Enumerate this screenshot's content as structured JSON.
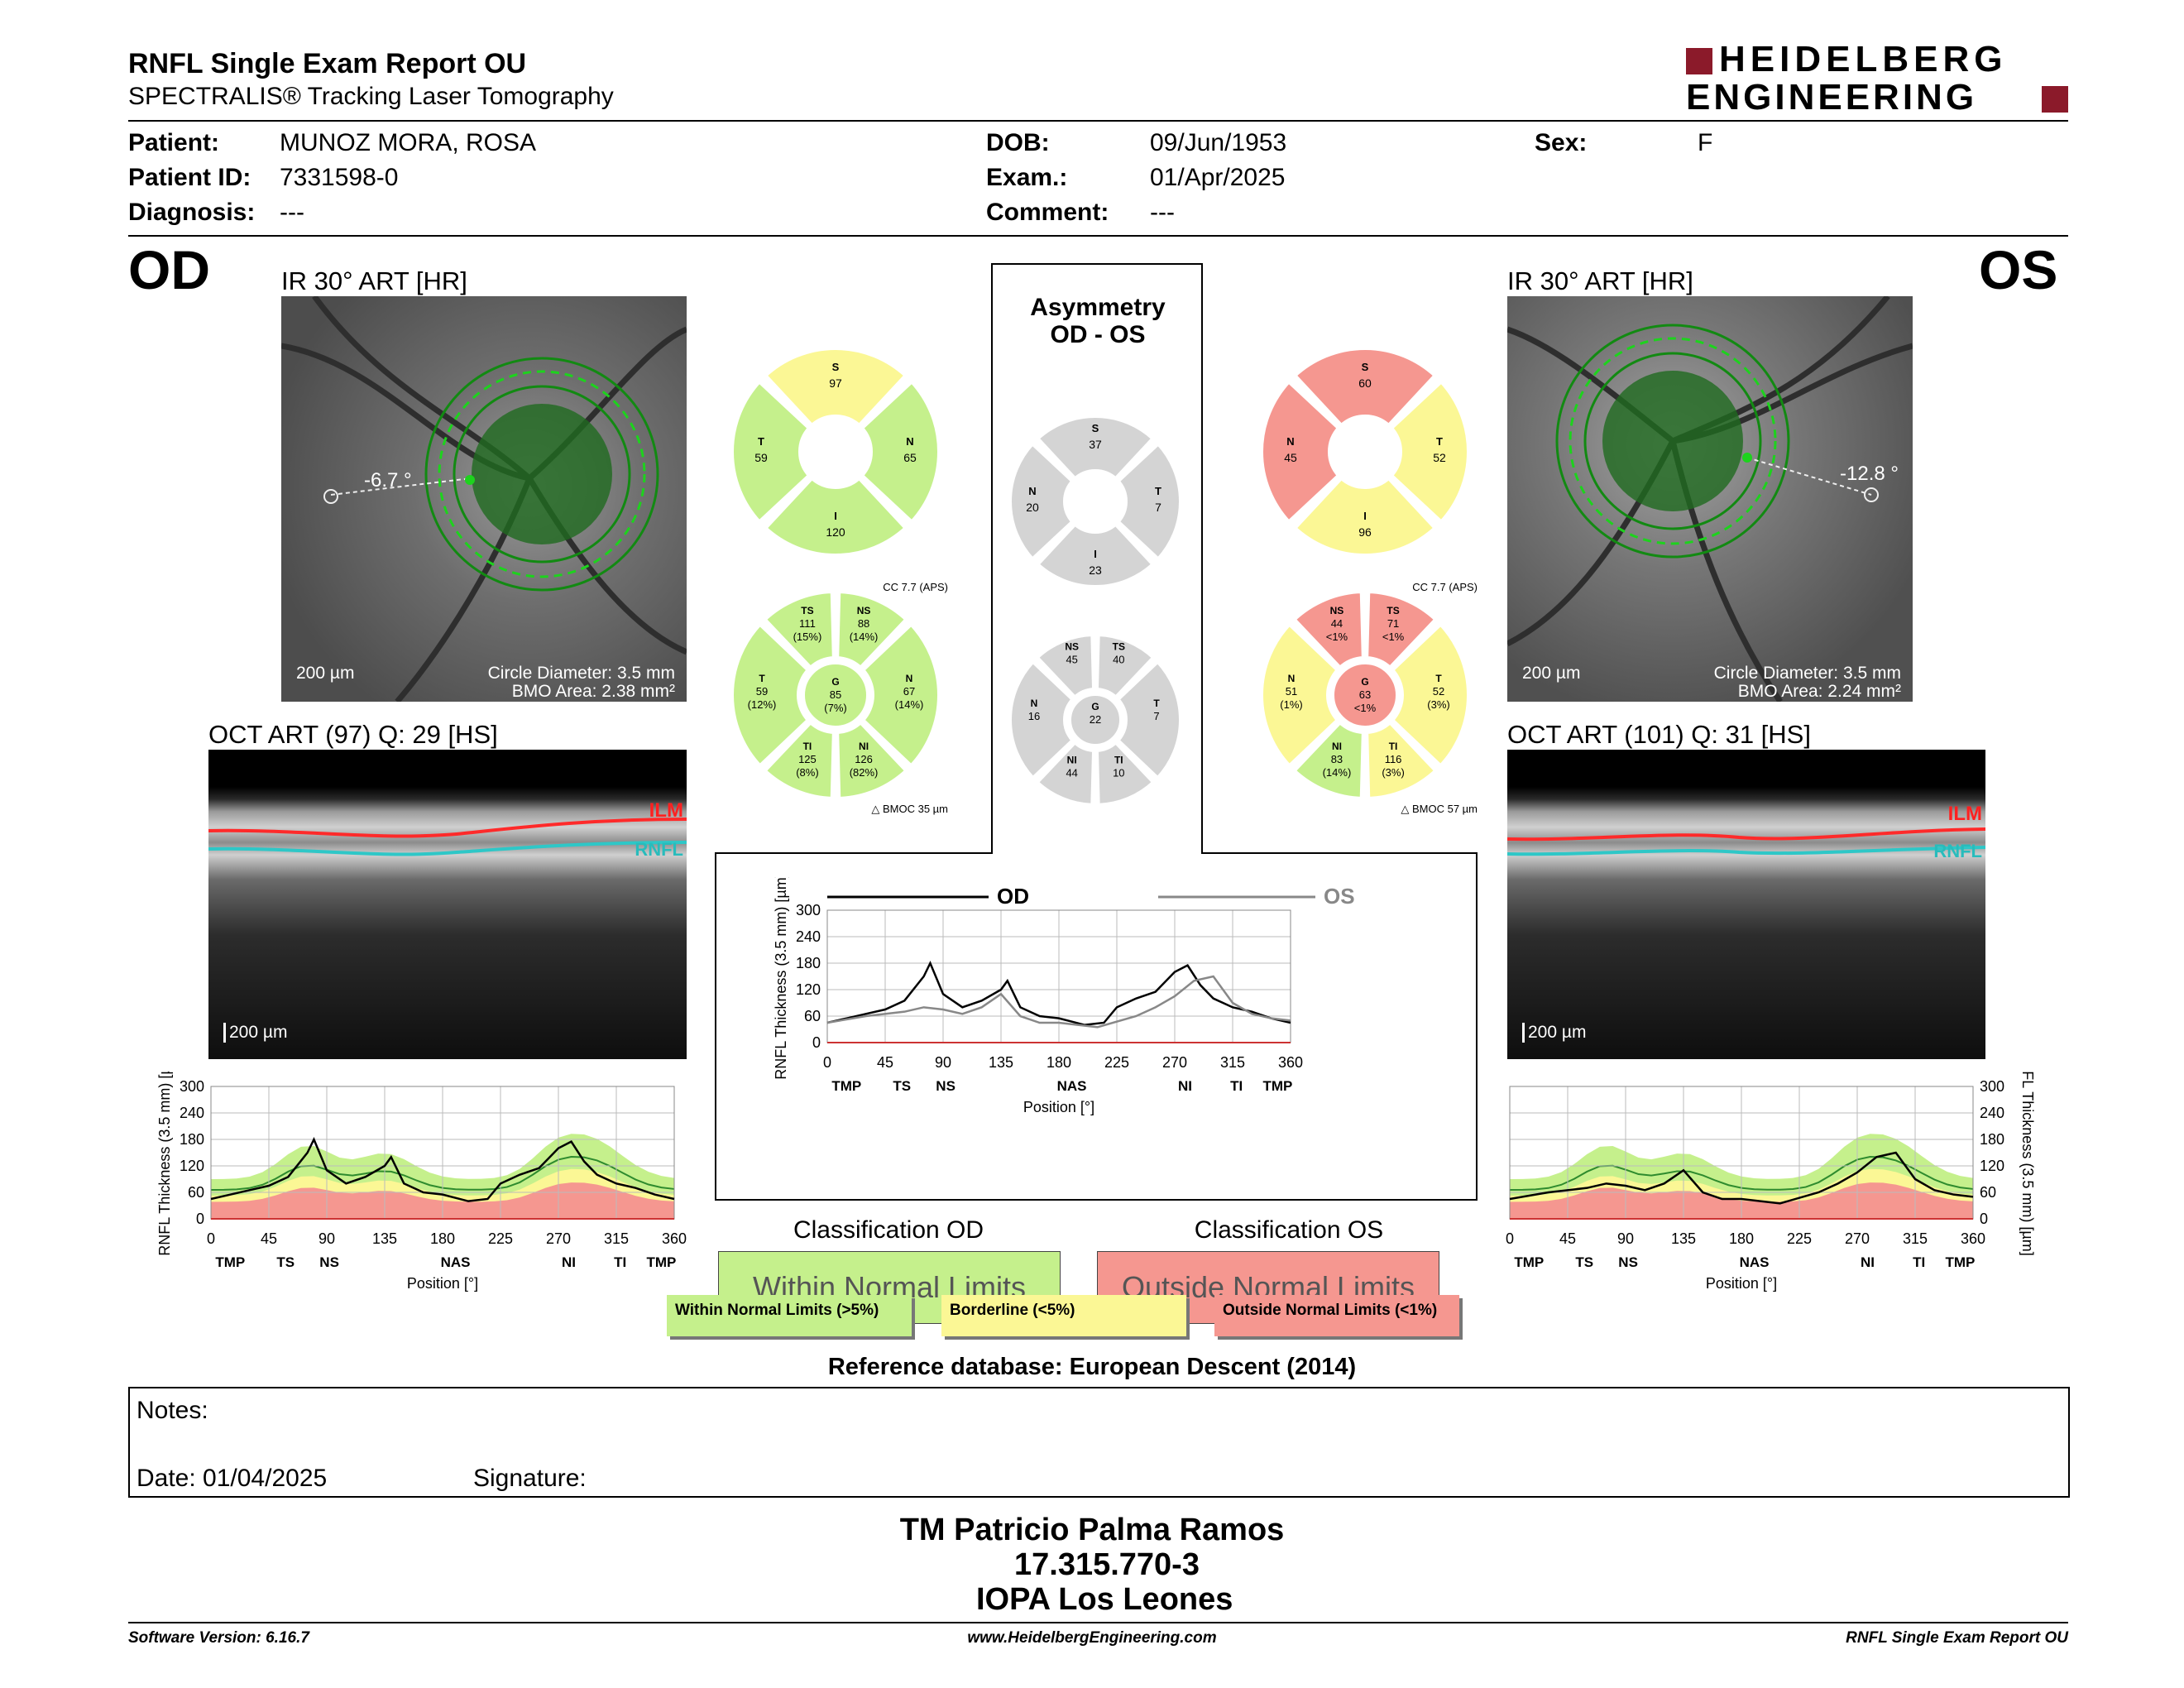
{
  "header": {
    "title": "RNFL Single Exam Report OU",
    "subtitle": "SPECTRALIS® Tracking Laser Tomography",
    "brand_line1": "HEIDELBERG",
    "brand_line2": "ENGINEERING",
    "brand_color": "#8b1a2a"
  },
  "patient": {
    "patient_label": "Patient:",
    "patient_value": "MUNOZ MORA, ROSA",
    "id_label": "Patient ID:",
    "id_value": "7331598-0",
    "diag_label": "Diagnosis:",
    "diag_value": "---",
    "dob_label": "DOB:",
    "dob_value": "09/Jun/1953",
    "exam_label": "Exam.:",
    "exam_value": "01/Apr/2025",
    "comment_label": "Comment:",
    "comment_value": "---",
    "sex_label": "Sex:",
    "sex_value": "F"
  },
  "od": {
    "eye": "OD",
    "ir_title": "IR 30° ART [HR]",
    "angle": "-6.7 °",
    "scale": "200 µm",
    "circle": "Circle Diameter: 3.5 mm",
    "bmo": "BMO Area: 2.38 mm²",
    "oct_title": "OCT ART (97) Q: 29 [HS]",
    "oct_scale": "200 µm",
    "ilm": "ILM",
    "rnfl": "RNFL",
    "quad": {
      "S": "97",
      "T": "59",
      "N": "65",
      "I": "120"
    },
    "cc": "CC 7.7 (APS)",
    "bmoc": "BMOC 35 µm",
    "sectors": {
      "TS": [
        "111",
        "(15%)"
      ],
      "NS": [
        "88",
        "(14%)"
      ],
      "T": [
        "59",
        "(12%)"
      ],
      "G": [
        "85",
        "(7%)"
      ],
      "N": [
        "67",
        "(14%)"
      ],
      "TI": [
        "125",
        "(8%)"
      ],
      "NI": [
        "126",
        "(82%)"
      ]
    }
  },
  "os": {
    "eye": "OS",
    "ir_title": "IR 30° ART [HR]",
    "angle": "-12.8 °",
    "scale": "200 µm",
    "circle": "Circle Diameter: 3.5 mm",
    "bmo": "BMO Area: 2.24 mm²",
    "oct_title": "OCT ART (101) Q: 31 [HS]",
    "oct_scale": "200 µm",
    "ilm": "ILM",
    "rnfl": "RNFL",
    "quad": {
      "S": "60",
      "N": "45",
      "T": "52",
      "I": "96"
    },
    "cc": "CC 7.7 (APS)",
    "bmoc": "BMOC 57 µm",
    "sectors": {
      "NS": [
        "44",
        "<1%"
      ],
      "TS": [
        "71",
        "<1%"
      ],
      "N": [
        "51",
        "(1%)"
      ],
      "G": [
        "63",
        "<1%"
      ],
      "T": [
        "52",
        "(3%)"
      ],
      "NI": [
        "83",
        "(14%)"
      ],
      "TI": [
        "116",
        "(3%)"
      ]
    }
  },
  "asym": {
    "title1": "Asymmetry",
    "title2": "OD - OS",
    "quad": {
      "S": "37",
      "N": "20",
      "T": "7",
      "I": "23"
    },
    "sectors": {
      "NS": "45",
      "TS": "40",
      "N": "16",
      "G": "22",
      "T": "7",
      "NI": "44",
      "TI": "10"
    }
  },
  "charts": {
    "ylabel": "RNFL Thickness (3.5 mm) [µm]",
    "xlabel": "Position [°]",
    "yticks": [
      "0",
      "60",
      "120",
      "180",
      "240",
      "300"
    ],
    "xticks": [
      "0",
      "45",
      "90",
      "135",
      "180",
      "225",
      "270",
      "315",
      "360"
    ],
    "region_labels": [
      "TMP",
      "TS",
      "NS",
      "NAS",
      "NI",
      "TI",
      "TMP"
    ],
    "od_legend": "OD",
    "os_legend": "OS"
  },
  "chart_data": [
    {
      "type": "line",
      "title": "",
      "xlabel": "Position [°]",
      "ylabel": "RNFL Thickness (3.5 mm) [µm]",
      "xlim": [
        0,
        360
      ],
      "ylim": [
        0,
        300
      ],
      "series": [
        {
          "name": "OD",
          "x": [
            0,
            15,
            30,
            45,
            60,
            75,
            80,
            90,
            105,
            120,
            135,
            140,
            150,
            165,
            180,
            200,
            215,
            225,
            240,
            255,
            270,
            280,
            290,
            300,
            315,
            330,
            345,
            360
          ],
          "values": [
            45,
            55,
            65,
            75,
            95,
            150,
            180,
            110,
            80,
            95,
            120,
            140,
            80,
            60,
            55,
            40,
            45,
            80,
            100,
            115,
            160,
            175,
            130,
            100,
            80,
            70,
            55,
            45
          ]
        },
        {
          "name": "OS",
          "x": [
            0,
            30,
            60,
            75,
            90,
            105,
            120,
            135,
            150,
            165,
            180,
            210,
            240,
            255,
            270,
            285,
            300,
            315,
            330,
            345,
            360
          ],
          "values": [
            45,
            60,
            70,
            80,
            75,
            65,
            80,
            110,
            60,
            45,
            45,
            35,
            60,
            80,
            105,
            140,
            150,
            90,
            65,
            55,
            50
          ]
        }
      ]
    },
    {
      "type": "line",
      "title": "",
      "xlabel": "Position [°]",
      "ylabel": "RNFL Thickness (3.5 mm) [µm]",
      "xlim": [
        0,
        360
      ],
      "ylim": [
        0,
        300
      ],
      "series": [
        {
          "name": "OD",
          "x": [
            0,
            15,
            30,
            45,
            60,
            75,
            80,
            90,
            105,
            120,
            135,
            140,
            150,
            165,
            180,
            200,
            215,
            225,
            240,
            255,
            270,
            280,
            290,
            300,
            315,
            330,
            345,
            360
          ],
          "values": [
            45,
            55,
            65,
            75,
            95,
            150,
            180,
            110,
            80,
            95,
            120,
            140,
            80,
            60,
            55,
            40,
            45,
            80,
            100,
            115,
            160,
            175,
            130,
            100,
            80,
            70,
            55,
            45
          ]
        }
      ]
    },
    {
      "type": "line",
      "title": "",
      "xlabel": "Position [°]",
      "ylabel": "RNFL Thickness (3.5 mm) [µm]",
      "xlim": [
        0,
        360
      ],
      "ylim": [
        0,
        300
      ],
      "series": [
        {
          "name": "OS",
          "x": [
            0,
            30,
            60,
            75,
            90,
            105,
            120,
            135,
            150,
            165,
            180,
            210,
            240,
            255,
            270,
            285,
            300,
            315,
            330,
            345,
            360
          ],
          "values": [
            45,
            60,
            70,
            80,
            75,
            65,
            80,
            110,
            60,
            45,
            45,
            35,
            60,
            80,
            105,
            140,
            150,
            90,
            65,
            55,
            50
          ]
        }
      ]
    }
  ],
  "classification": {
    "od_title": "Classification OD",
    "od_value": "Within Normal Limits",
    "os_title": "Classification OS",
    "os_value": "Outside Normal Limits",
    "legend_within": "Within Normal Limits (>5%)",
    "legend_border": "Borderline (<5%)",
    "legend_outside": "Outside Normal Limits (<1%)",
    "reference": "Reference database: European Descent (2014)"
  },
  "notes": {
    "notes_label": "Notes:",
    "date": "Date: 01/04/2025",
    "signature": "Signature:"
  },
  "signer": {
    "name": "TM Patricio Palma Ramos",
    "id": "17.315.770-3",
    "org": "IOPA Los Leones"
  },
  "footer": {
    "software": "Software Version: 6.16.7",
    "url": "www.HeidelbergEngineering.com",
    "report": "RNFL Single Exam Report OU"
  },
  "colors": {
    "green": "#c5f08c",
    "yellow": "#fbf795",
    "red": "#f59790",
    "gray": "#d4d4d4"
  }
}
